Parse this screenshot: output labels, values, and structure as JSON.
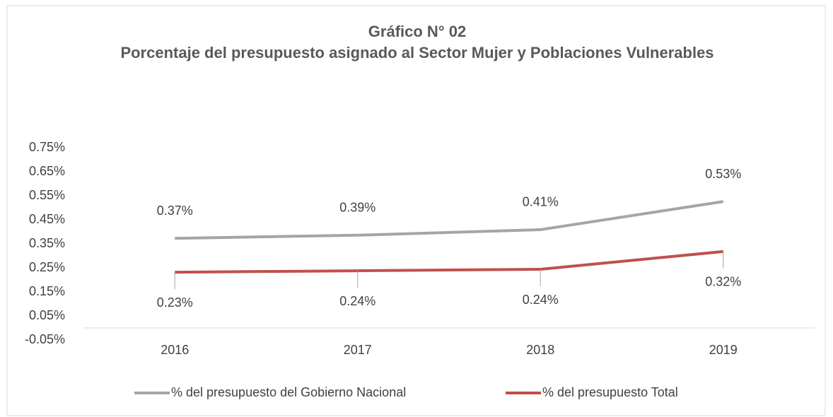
{
  "chart_data": {
    "type": "line",
    "title": "Gráfico N° 02",
    "subtitle": "Porcentaje del presupuesto asignado al Sector Mujer y Poblaciones Vulnerables",
    "categories": [
      "2016",
      "2017",
      "2018",
      "2019"
    ],
    "series": [
      {
        "name": "%  del presupuesto del Gobierno Nacional",
        "color": "#a5a5a5",
        "values": [
          0.373,
          0.386,
          0.409,
          0.526
        ],
        "value_labels": [
          "0.37%",
          "0.39%",
          "0.41%",
          "0.53%"
        ]
      },
      {
        "name": "%  del presupuesto Total",
        "color": "#c0504d",
        "values": [
          0.232,
          0.238,
          0.244,
          0.318
        ],
        "value_labels": [
          "0.23%",
          "0.24%",
          "0.24%",
          "0.32%"
        ]
      }
    ],
    "ylim": [
      -0.05,
      0.75
    ],
    "yticks": [
      {
        "value": -0.05,
        "label": "-0.05%"
      },
      {
        "value": 0.05,
        "label": "0.05%"
      },
      {
        "value": 0.15,
        "label": "0.15%"
      },
      {
        "value": 0.25,
        "label": "0.25%"
      },
      {
        "value": 0.35,
        "label": "0.35%"
      },
      {
        "value": 0.45,
        "label": "0.45%"
      },
      {
        "value": 0.55,
        "label": "0.55%"
      },
      {
        "value": 0.65,
        "label": "0.65%"
      },
      {
        "value": 0.75,
        "label": "0.75%"
      }
    ],
    "grid": false,
    "legend": "bottom"
  }
}
